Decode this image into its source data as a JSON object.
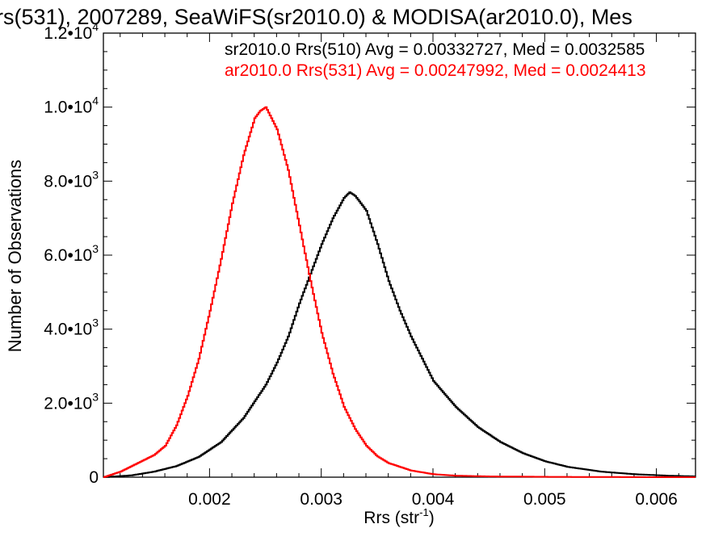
{
  "chart_data": {
    "type": "line",
    "title": "rs(531), 2007289, SeaWiFS(sr2010.0) & MODISA(ar2010.0), Mes",
    "xlabel": "Rrs (str",
    "xlabel_sup": "-1",
    "xlabel_close": ")",
    "ylabel": "Number of Observations",
    "xlim": [
      0.00105,
      0.00635
    ],
    "ylim": [
      0,
      12000
    ],
    "grid": false,
    "x_ticks": [
      {
        "value": 0.002,
        "label": "0.002"
      },
      {
        "value": 0.003,
        "label": "0.003"
      },
      {
        "value": 0.004,
        "label": "0.004"
      },
      {
        "value": 0.005,
        "label": "0.005"
      },
      {
        "value": 0.006,
        "label": "0.006"
      }
    ],
    "y_ticks": [
      {
        "value": 0,
        "mant": "0",
        "exp": ""
      },
      {
        "value": 2000,
        "mant": "2.0•10",
        "exp": "3"
      },
      {
        "value": 4000,
        "mant": "4.0•10",
        "exp": "3"
      },
      {
        "value": 6000,
        "mant": "6.0•10",
        "exp": "3"
      },
      {
        "value": 8000,
        "mant": "8.0•10",
        "exp": "3"
      },
      {
        "value": 10000,
        "mant": "1.0•10",
        "exp": "4"
      },
      {
        "value": 12000,
        "mant": "1.2•10",
        "exp": "4"
      }
    ],
    "legend_position": "top-right",
    "series": [
      {
        "name": "sr2010.0 Rrs(510) Avg = 0.00332727, Med = 0.0032585",
        "color": "#000000",
        "x": [
          0.00105,
          0.0013,
          0.0015,
          0.0017,
          0.0019,
          0.0021,
          0.0023,
          0.0025,
          0.0026,
          0.0027,
          0.0028,
          0.0029,
          0.003,
          0.0031,
          0.0032,
          0.00325,
          0.0033,
          0.0034,
          0.0035,
          0.0036,
          0.0037,
          0.0038,
          0.0039,
          0.004,
          0.0042,
          0.0044,
          0.0046,
          0.0048,
          0.005,
          0.0052,
          0.0055,
          0.0058,
          0.0061,
          0.00635
        ],
        "y": [
          0,
          50,
          150,
          300,
          550,
          950,
          1600,
          2500,
          3100,
          3800,
          4700,
          5500,
          6300,
          7000,
          7550,
          7700,
          7600,
          7200,
          6300,
          5300,
          4500,
          3800,
          3200,
          2600,
          1900,
          1350,
          950,
          650,
          430,
          280,
          150,
          80,
          40,
          20
        ]
      },
      {
        "name": "ar2010.0 Rrs(531) Avg = 0.00247992, Med = 0.0024413",
        "color": "#ff0000",
        "x": [
          0.00105,
          0.0012,
          0.0014,
          0.0015,
          0.0016,
          0.0017,
          0.0018,
          0.0019,
          0.002,
          0.0021,
          0.0022,
          0.0023,
          0.0024,
          0.00245,
          0.0025,
          0.0026,
          0.0027,
          0.0028,
          0.0029,
          0.003,
          0.0031,
          0.0032,
          0.0033,
          0.0034,
          0.0035,
          0.0036,
          0.0038,
          0.004,
          0.0042,
          0.0045,
          0.005,
          0.0055,
          0.006,
          0.00635
        ],
        "y": [
          0,
          150,
          450,
          600,
          850,
          1400,
          2200,
          3200,
          4500,
          5900,
          7400,
          8700,
          9700,
          9900,
          10000,
          9400,
          8300,
          6800,
          5300,
          3900,
          2800,
          1900,
          1300,
          850,
          560,
          380,
          180,
          80,
          40,
          20,
          10,
          5,
          0,
          0
        ]
      }
    ]
  }
}
